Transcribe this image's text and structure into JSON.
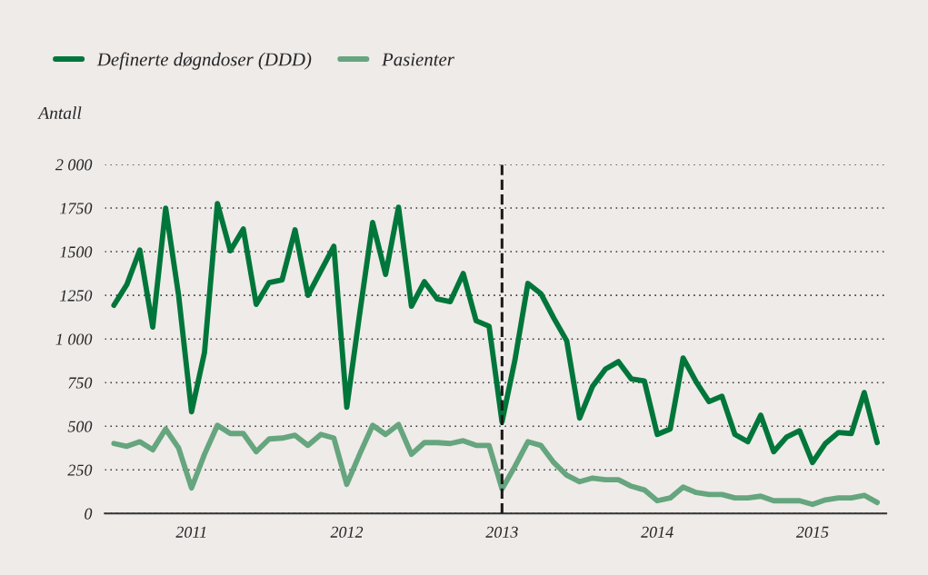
{
  "chart_data": {
    "type": "line",
    "ylabel": "Antall",
    "categories": [
      null,
      null,
      null,
      null,
      null,
      null,
      "2011",
      null,
      null,
      null,
      null,
      null,
      null,
      null,
      null,
      null,
      null,
      null,
      "2012",
      null,
      null,
      null,
      null,
      null,
      null,
      null,
      null,
      null,
      null,
      null,
      "2013",
      null,
      null,
      null,
      null,
      null,
      null,
      null,
      null,
      null,
      null,
      null,
      "2014",
      null,
      null,
      null,
      null,
      null,
      null,
      null,
      null,
      null,
      null,
      null,
      "2015",
      null,
      null,
      null,
      null,
      null
    ],
    "series": [
      {
        "name": "Definerte døgndoser (DDD)",
        "color": "#00763a",
        "values": [
          1193,
          1312,
          1510,
          1068,
          1750,
          1250,
          583,
          922,
          1776,
          1505,
          1630,
          1198,
          1323,
          1339,
          1625,
          1250,
          1390,
          1531,
          609,
          1146,
          1667,
          1370,
          1755,
          1188,
          1328,
          1229,
          1214,
          1375,
          1104,
          1073,
          525,
          880,
          1318,
          1260,
          1120,
          990,
          547,
          729,
          828,
          870,
          771,
          760,
          453,
          484,
          891,
          755,
          641,
          672,
          453,
          411,
          563,
          354,
          438,
          474,
          292,
          401,
          464,
          458,
          693,
          406
        ]
      },
      {
        "name": "Pasienter",
        "color": "#66a57e",
        "values": [
          401,
          385,
          411,
          365,
          484,
          375,
          146,
          339,
          505,
          458,
          458,
          354,
          427,
          432,
          448,
          390,
          453,
          432,
          167,
          340,
          505,
          453,
          510,
          339,
          406,
          406,
          401,
          417,
          390,
          390,
          141,
          270,
          411,
          390,
          292,
          219,
          182,
          203,
          193,
          193,
          156,
          135,
          73,
          89,
          151,
          120,
          109,
          109,
          89,
          89,
          99,
          73,
          73,
          73,
          52,
          78,
          89,
          89,
          104,
          63
        ]
      }
    ],
    "ylim": [
      0,
      2000
    ],
    "yticks": [
      0,
      250,
      500,
      750,
      {
        "value": 1000,
        "label": "1 000"
      },
      1250,
      1500,
      1750,
      {
        "value": 2000,
        "label": "2 000"
      }
    ],
    "ref_lines": [
      {
        "axis": "x",
        "value": "2013",
        "color": "#1a1a1a",
        "line_style": "dashed"
      }
    ],
    "grid": "y",
    "legend": "top left",
    "marker": "none",
    "line_style": "solid"
  }
}
